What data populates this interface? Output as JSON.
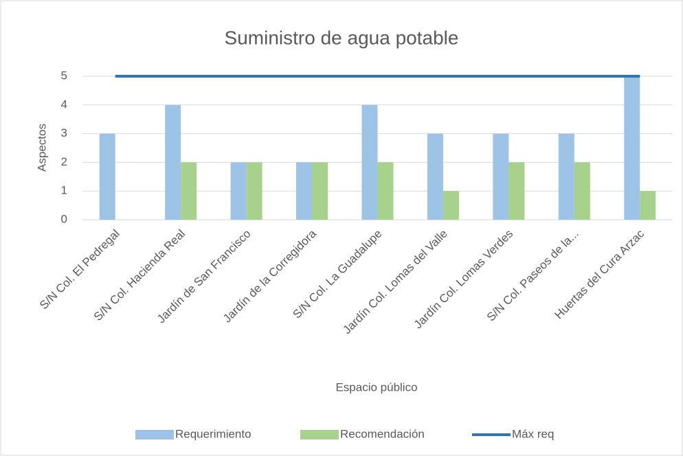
{
  "chart_data": {
    "type": "bar",
    "title": "Suministro de agua potable",
    "x_label": "Espacio público",
    "y_label": "Aspectos",
    "categories": [
      "S/N Col. El Pedregal",
      "S/N Col. Hacienda Real",
      "Jardín de San Francisco",
      "Jardín de la Corregidora",
      "S/N Col. La Guadalupe",
      "Jardín Col. Lomas del Valle",
      "Jardín Col. Lomas Verdes",
      "S/N Col. Paseos de la...",
      "Huertas del Cura Arzac"
    ],
    "series": [
      {
        "name": "Requerimiento",
        "color": "#9dc3e6",
        "values": [
          3,
          4,
          2,
          2,
          4,
          3,
          3,
          3,
          5
        ]
      },
      {
        "name": "Recomendación",
        "color": "#a9d18e",
        "values": [
          0,
          2,
          2,
          2,
          2,
          1,
          2,
          2,
          1
        ]
      },
      {
        "name": "Máx req",
        "color": "#2e75b6",
        "type": "line",
        "values": [
          5,
          5,
          5,
          5,
          5,
          5,
          5,
          5,
          5
        ]
      }
    ],
    "ylim": [
      0,
      5
    ],
    "yticks": [
      0,
      1,
      2,
      3,
      4,
      5
    ],
    "grid": true,
    "legend": "bottom"
  }
}
